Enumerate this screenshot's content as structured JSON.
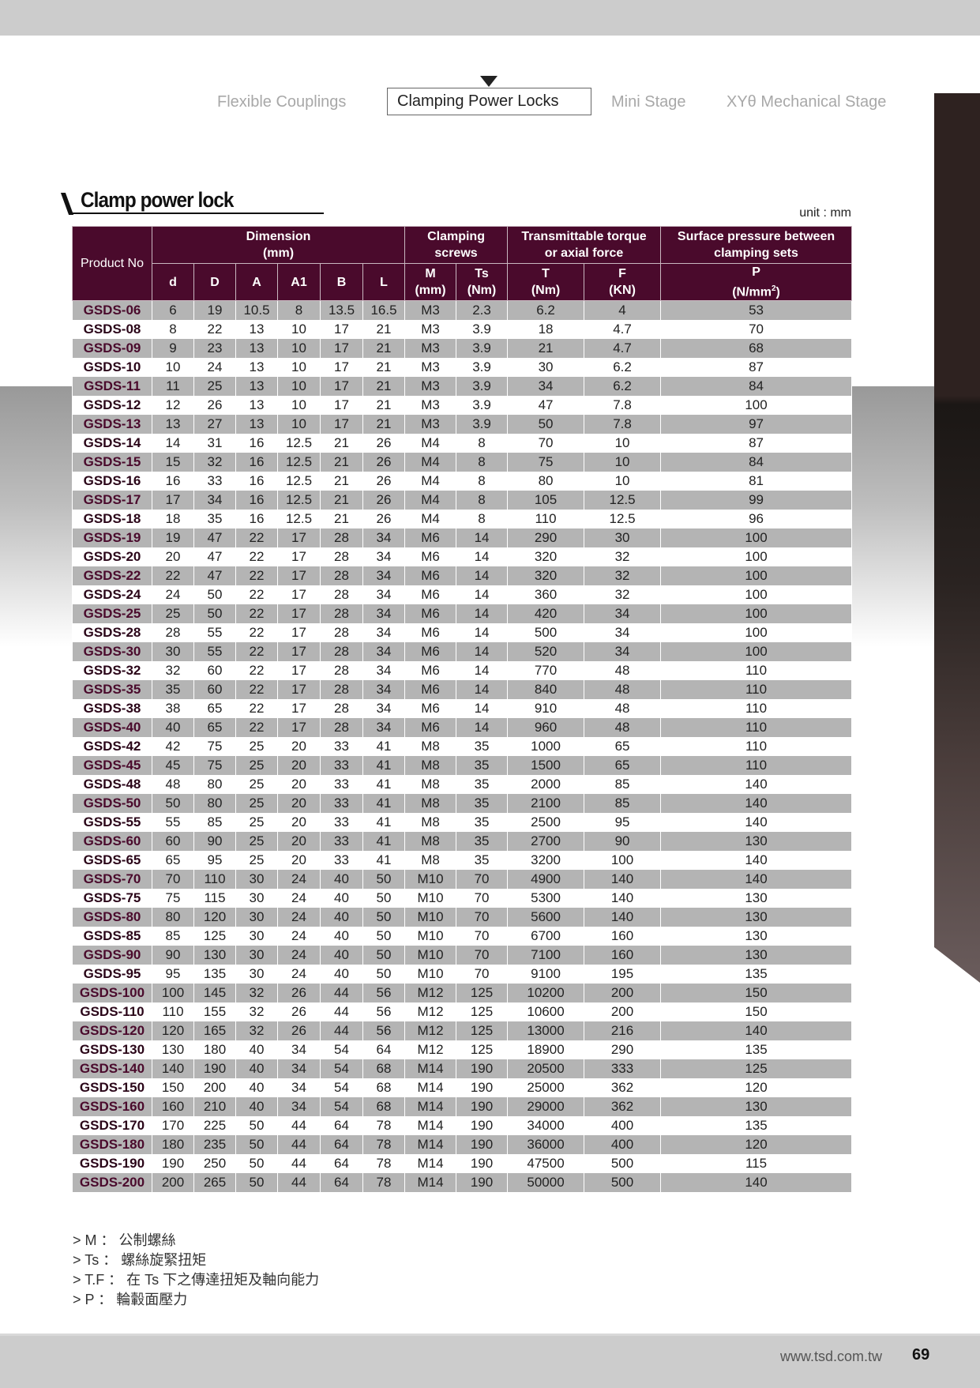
{
  "nav": {
    "tabs": [
      {
        "label": "Flexible Couplings",
        "active": false
      },
      {
        "label": "Clamping Power Locks",
        "active": true
      },
      {
        "label": "Mini Stage",
        "active": false
      },
      {
        "label": "XYθ Mechanical Stage",
        "active": false
      }
    ]
  },
  "section_title": "Clamp power lock",
  "unit": "unit : mm",
  "table": {
    "header": {
      "product_no": "Product No",
      "dimension": "Dimension",
      "dimension_unit": "(mm)",
      "clamping": "Clamping",
      "screws": "screws",
      "torque1": "Transmittable torque",
      "torque2": "or axial force",
      "pressure1": "Surface pressure between",
      "pressure2": "clamping sets",
      "cols": [
        "d",
        "D",
        "A",
        "A1",
        "B",
        "L"
      ],
      "M": "M",
      "M_unit": "(mm)",
      "Ts": "Ts",
      "Ts_unit": "(Nm)",
      "T": "T",
      "T_unit": "(Nm)",
      "F": "F",
      "F_unit": "(KN)",
      "P": "P",
      "P_unit": "(N/mm",
      "P_sup": "2",
      "P_close": ")"
    },
    "rows": [
      [
        "GSDS-06",
        "6",
        "19",
        "10.5",
        "8",
        "13.5",
        "16.5",
        "M3",
        "2.3",
        "6.2",
        "4",
        "53"
      ],
      [
        "GSDS-08",
        "8",
        "22",
        "13",
        "10",
        "17",
        "21",
        "M3",
        "3.9",
        "18",
        "4.7",
        "70"
      ],
      [
        "GSDS-09",
        "9",
        "23",
        "13",
        "10",
        "17",
        "21",
        "M3",
        "3.9",
        "21",
        "4.7",
        "68"
      ],
      [
        "GSDS-10",
        "10",
        "24",
        "13",
        "10",
        "17",
        "21",
        "M3",
        "3.9",
        "30",
        "6.2",
        "87"
      ],
      [
        "GSDS-11",
        "11",
        "25",
        "13",
        "10",
        "17",
        "21",
        "M3",
        "3.9",
        "34",
        "6.2",
        "84"
      ],
      [
        "GSDS-12",
        "12",
        "26",
        "13",
        "10",
        "17",
        "21",
        "M3",
        "3.9",
        "47",
        "7.8",
        "100"
      ],
      [
        "GSDS-13",
        "13",
        "27",
        "13",
        "10",
        "17",
        "21",
        "M3",
        "3.9",
        "50",
        "7.8",
        "97"
      ],
      [
        "GSDS-14",
        "14",
        "31",
        "16",
        "12.5",
        "21",
        "26",
        "M4",
        "8",
        "70",
        "10",
        "87"
      ],
      [
        "GSDS-15",
        "15",
        "32",
        "16",
        "12.5",
        "21",
        "26",
        "M4",
        "8",
        "75",
        "10",
        "84"
      ],
      [
        "GSDS-16",
        "16",
        "33",
        "16",
        "12.5",
        "21",
        "26",
        "M4",
        "8",
        "80",
        "10",
        "81"
      ],
      [
        "GSDS-17",
        "17",
        "34",
        "16",
        "12.5",
        "21",
        "26",
        "M4",
        "8",
        "105",
        "12.5",
        "99"
      ],
      [
        "GSDS-18",
        "18",
        "35",
        "16",
        "12.5",
        "21",
        "26",
        "M4",
        "8",
        "110",
        "12.5",
        "96"
      ],
      [
        "GSDS-19",
        "19",
        "47",
        "22",
        "17",
        "28",
        "34",
        "M6",
        "14",
        "290",
        "30",
        "100"
      ],
      [
        "GSDS-20",
        "20",
        "47",
        "22",
        "17",
        "28",
        "34",
        "M6",
        "14",
        "320",
        "32",
        "100"
      ],
      [
        "GSDS-22",
        "22",
        "47",
        "22",
        "17",
        "28",
        "34",
        "M6",
        "14",
        "320",
        "32",
        "100"
      ],
      [
        "GSDS-24",
        "24",
        "50",
        "22",
        "17",
        "28",
        "34",
        "M6",
        "14",
        "360",
        "32",
        "100"
      ],
      [
        "GSDS-25",
        "25",
        "50",
        "22",
        "17",
        "28",
        "34",
        "M6",
        "14",
        "420",
        "34",
        "100"
      ],
      [
        "GSDS-28",
        "28",
        "55",
        "22",
        "17",
        "28",
        "34",
        "M6",
        "14",
        "500",
        "34",
        "100"
      ],
      [
        "GSDS-30",
        "30",
        "55",
        "22",
        "17",
        "28",
        "34",
        "M6",
        "14",
        "520",
        "34",
        "100"
      ],
      [
        "GSDS-32",
        "32",
        "60",
        "22",
        "17",
        "28",
        "34",
        "M6",
        "14",
        "770",
        "48",
        "110"
      ],
      [
        "GSDS-35",
        "35",
        "60",
        "22",
        "17",
        "28",
        "34",
        "M6",
        "14",
        "840",
        "48",
        "110"
      ],
      [
        "GSDS-38",
        "38",
        "65",
        "22",
        "17",
        "28",
        "34",
        "M6",
        "14",
        "910",
        "48",
        "110"
      ],
      [
        "GSDS-40",
        "40",
        "65",
        "22",
        "17",
        "28",
        "34",
        "M6",
        "14",
        "960",
        "48",
        "110"
      ],
      [
        "GSDS-42",
        "42",
        "75",
        "25",
        "20",
        "33",
        "41",
        "M8",
        "35",
        "1000",
        "65",
        "110"
      ],
      [
        "GSDS-45",
        "45",
        "75",
        "25",
        "20",
        "33",
        "41",
        "M8",
        "35",
        "1500",
        "65",
        "110"
      ],
      [
        "GSDS-48",
        "48",
        "80",
        "25",
        "20",
        "33",
        "41",
        "M8",
        "35",
        "2000",
        "85",
        "140"
      ],
      [
        "GSDS-50",
        "50",
        "80",
        "25",
        "20",
        "33",
        "41",
        "M8",
        "35",
        "2100",
        "85",
        "140"
      ],
      [
        "GSDS-55",
        "55",
        "85",
        "25",
        "20",
        "33",
        "41",
        "M8",
        "35",
        "2500",
        "95",
        "140"
      ],
      [
        "GSDS-60",
        "60",
        "90",
        "25",
        "20",
        "33",
        "41",
        "M8",
        "35",
        "2700",
        "90",
        "130"
      ],
      [
        "GSDS-65",
        "65",
        "95",
        "25",
        "20",
        "33",
        "41",
        "M8",
        "35",
        "3200",
        "100",
        "140"
      ],
      [
        "GSDS-70",
        "70",
        "110",
        "30",
        "24",
        "40",
        "50",
        "M10",
        "70",
        "4900",
        "140",
        "140"
      ],
      [
        "GSDS-75",
        "75",
        "115",
        "30",
        "24",
        "40",
        "50",
        "M10",
        "70",
        "5300",
        "140",
        "130"
      ],
      [
        "GSDS-80",
        "80",
        "120",
        "30",
        "24",
        "40",
        "50",
        "M10",
        "70",
        "5600",
        "140",
        "130"
      ],
      [
        "GSDS-85",
        "85",
        "125",
        "30",
        "24",
        "40",
        "50",
        "M10",
        "70",
        "6700",
        "160",
        "130"
      ],
      [
        "GSDS-90",
        "90",
        "130",
        "30",
        "24",
        "40",
        "50",
        "M10",
        "70",
        "7100",
        "160",
        "130"
      ],
      [
        "GSDS-95",
        "95",
        "135",
        "30",
        "24",
        "40",
        "50",
        "M10",
        "70",
        "9100",
        "195",
        "135"
      ],
      [
        "GSDS-100",
        "100",
        "145",
        "32",
        "26",
        "44",
        "56",
        "M12",
        "125",
        "10200",
        "200",
        "150"
      ],
      [
        "GSDS-110",
        "110",
        "155",
        "32",
        "26",
        "44",
        "56",
        "M12",
        "125",
        "10600",
        "200",
        "150"
      ],
      [
        "GSDS-120",
        "120",
        "165",
        "32",
        "26",
        "44",
        "56",
        "M12",
        "125",
        "13000",
        "216",
        "140"
      ],
      [
        "GSDS-130",
        "130",
        "180",
        "40",
        "34",
        "54",
        "64",
        "M12",
        "125",
        "18900",
        "290",
        "135"
      ],
      [
        "GSDS-140",
        "140",
        "190",
        "40",
        "34",
        "54",
        "68",
        "M14",
        "190",
        "20500",
        "333",
        "125"
      ],
      [
        "GSDS-150",
        "150",
        "200",
        "40",
        "34",
        "54",
        "68",
        "M14",
        "190",
        "25000",
        "362",
        "120"
      ],
      [
        "GSDS-160",
        "160",
        "210",
        "40",
        "34",
        "54",
        "68",
        "M14",
        "190",
        "29000",
        "362",
        "130"
      ],
      [
        "GSDS-170",
        "170",
        "225",
        "50",
        "44",
        "64",
        "78",
        "M14",
        "190",
        "34000",
        "400",
        "135"
      ],
      [
        "GSDS-180",
        "180",
        "235",
        "50",
        "44",
        "64",
        "78",
        "M14",
        "190",
        "36000",
        "400",
        "120"
      ],
      [
        "GSDS-190",
        "190",
        "250",
        "50",
        "44",
        "64",
        "78",
        "M14",
        "190",
        "47500",
        "500",
        "115"
      ],
      [
        "GSDS-200",
        "200",
        "265",
        "50",
        "44",
        "64",
        "78",
        "M14",
        "190",
        "50000",
        "500",
        "140"
      ]
    ]
  },
  "notes": [
    "> M ： 公制螺絲",
    "> Ts ： 螺絲旋緊扭矩",
    "> T.F ： 在  Ts 下之傳達扭矩及軸向能力",
    "> P ： 輪轂面壓力"
  ],
  "footer": {
    "url": "www.tsd.com.tw",
    "page": "69"
  },
  "colors": {
    "header_bg": "#4a0a2c",
    "stripe": "#b4b4b4",
    "product_text": "#4a0a2c"
  }
}
